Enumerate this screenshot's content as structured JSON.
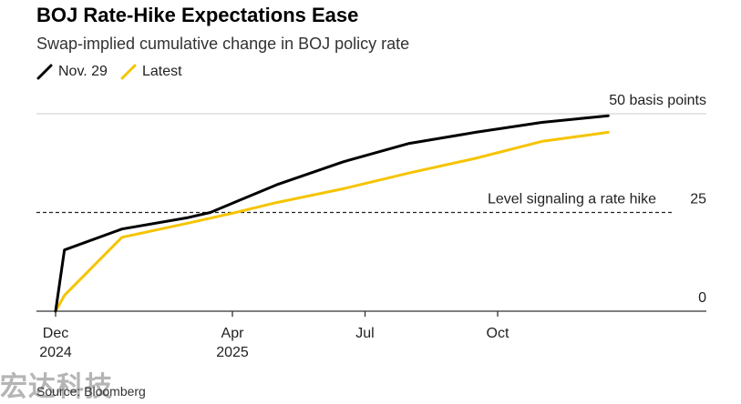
{
  "chart_data": {
    "type": "line",
    "title": "BOJ Rate-Hike Expectations Ease",
    "subtitle": "Swap-implied cumulative change in BOJ policy rate",
    "ylim": [
      0,
      50
    ],
    "y_ticks": [
      {
        "value": 0,
        "label": "0"
      },
      {
        "value": 25,
        "label": "25"
      },
      {
        "value": 50,
        "label": "50 basis points"
      }
    ],
    "x_ticks": [
      {
        "t": 0,
        "label": "Dec",
        "sublabel": "2024"
      },
      {
        "t": 4,
        "label": "Apr",
        "sublabel": "2025"
      },
      {
        "t": 7,
        "label": "Jul",
        "sublabel": ""
      },
      {
        "t": 10,
        "label": "Oct",
        "sublabel": ""
      }
    ],
    "reference_line": {
      "value": 25,
      "label": "Level signaling a rate hike"
    },
    "series": [
      {
        "name": "Nov. 29",
        "color": "#000000",
        "points": [
          [
            0,
            0
          ],
          [
            0.2,
            15.5
          ],
          [
            1.5,
            20.8
          ],
          [
            3,
            23.7
          ],
          [
            3.5,
            25
          ],
          [
            5,
            32
          ],
          [
            6.5,
            37.8
          ],
          [
            8,
            42.5
          ],
          [
            9.5,
            45.3
          ],
          [
            11,
            47.8
          ],
          [
            12.5,
            49.5
          ]
        ]
      },
      {
        "name": "Latest",
        "color": "#f5c400",
        "points": [
          [
            0,
            0
          ],
          [
            0.2,
            4
          ],
          [
            1.5,
            18.7
          ],
          [
            3,
            22.3
          ],
          [
            4,
            24.8
          ],
          [
            5,
            27.5
          ],
          [
            6.5,
            31
          ],
          [
            8,
            35
          ],
          [
            9.5,
            38.7
          ],
          [
            11,
            43
          ],
          [
            12.5,
            45.3
          ]
        ]
      }
    ]
  },
  "source": "Source: Bloomberg",
  "watermark": "宏达科技"
}
